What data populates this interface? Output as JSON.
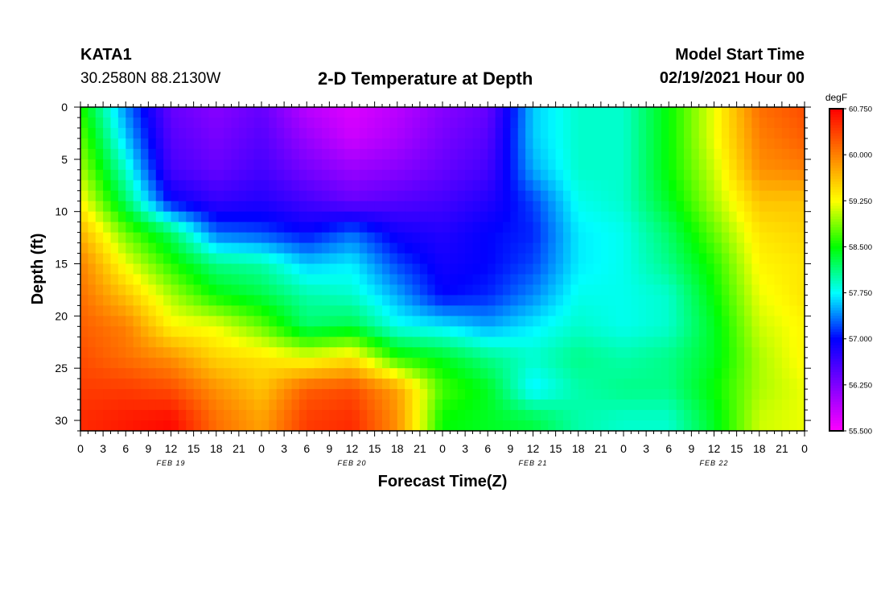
{
  "header": {
    "station_id": "KATA1",
    "station_coords": "30.2580N 88.2130W",
    "title": "2-D Temperature at Depth",
    "model_label": "Model Start Time",
    "model_time": "02/19/2021 Hour 00"
  },
  "chart_data": {
    "type": "heatmap",
    "title": "2-D Temperature at Depth",
    "xlabel": "Forecast Time(Z)",
    "ylabel": "Depth (ft)",
    "x_unit": "hours since model start",
    "xlim": [
      0,
      96
    ],
    "ylim": [
      0,
      31
    ],
    "y_inverted": true,
    "x_tick_labels": [
      "0",
      "3",
      "6",
      "9",
      "12",
      "15",
      "18",
      "21",
      "0",
      "3",
      "6",
      "9",
      "12",
      "15",
      "18",
      "21",
      "0",
      "3",
      "6",
      "9",
      "12",
      "15",
      "18",
      "21",
      "0",
      "3",
      "6",
      "9",
      "12",
      "15",
      "18",
      "21",
      "0"
    ],
    "date_labels": [
      "FEB 19",
      "FEB 20",
      "FEB 21",
      "FEB 22"
    ],
    "y_ticks": [
      0,
      5,
      10,
      15,
      20,
      25,
      30
    ],
    "colorbar": {
      "unit": "degF",
      "min": 55.5,
      "max": 60.75,
      "tick_values": [
        60.75,
        60.0,
        59.25,
        58.5,
        57.75,
        57.0,
        56.25,
        55.5
      ],
      "tick_labels": [
        "60.750",
        "60.000",
        "59.250",
        "58.500",
        "57.750",
        "57.000",
        "56.250",
        "55.500"
      ],
      "colors": [
        "#ff00ff",
        "#7f00ff",
        "#0000ff",
        "#00ffff",
        "#00ff00",
        "#ffff00",
        "#ff8000",
        "#ff0000"
      ]
    },
    "grid_x_hours": [
      0,
      6,
      12,
      18,
      24,
      30,
      36,
      42,
      48,
      54,
      60,
      66,
      72,
      78,
      84,
      90,
      96
    ],
    "grid_depths_ft": [
      0,
      3,
      6,
      9,
      12,
      15,
      18,
      21,
      24,
      27,
      30
    ],
    "values_degF": [
      [
        58.6,
        57.4,
        56.4,
        56.2,
        56.4,
        55.9,
        55.7,
        55.9,
        56.2,
        56.4,
        57.6,
        57.9,
        57.9,
        58.5,
        59.2,
        60.1,
        60.3
      ],
      [
        58.8,
        57.6,
        56.5,
        56.3,
        56.5,
        56.1,
        55.8,
        56.0,
        56.3,
        56.5,
        57.6,
        57.9,
        57.9,
        58.5,
        59.2,
        60.0,
        60.2
      ],
      [
        59.0,
        57.9,
        56.6,
        56.4,
        56.6,
        56.3,
        56.1,
        56.2,
        56.4,
        56.6,
        57.5,
        57.9,
        57.9,
        58.5,
        59.1,
        59.9,
        60.0
      ],
      [
        59.3,
        58.2,
        57.0,
        56.7,
        56.8,
        56.6,
        56.4,
        56.5,
        56.6,
        56.8,
        57.2,
        57.8,
        57.9,
        58.4,
        59.0,
        59.6,
        59.6
      ],
      [
        59.7,
        58.8,
        58.2,
        57.3,
        57.2,
        57.0,
        57.3,
        56.9,
        56.8,
        57.0,
        57.1,
        57.7,
        57.8,
        58.2,
        58.8,
        59.4,
        59.5
      ],
      [
        60.0,
        59.2,
        58.6,
        58.1,
        58.0,
        57.6,
        57.7,
        57.2,
        56.9,
        57.0,
        57.2,
        57.7,
        57.8,
        58.1,
        58.6,
        59.3,
        59.4
      ],
      [
        60.1,
        59.6,
        59.0,
        58.5,
        58.3,
        58.0,
        57.9,
        57.5,
        57.0,
        57.1,
        57.4,
        57.8,
        57.8,
        57.9,
        58.5,
        59.2,
        59.4
      ],
      [
        60.2,
        60.0,
        59.3,
        59.2,
        58.8,
        58.2,
        58.3,
        57.8,
        57.7,
        57.5,
        57.7,
        57.9,
        57.8,
        57.9,
        58.4,
        59.1,
        59.3
      ],
      [
        60.3,
        60.1,
        59.9,
        59.5,
        59.4,
        59.2,
        59.4,
        58.6,
        58.4,
        58.1,
        57.9,
        58.1,
        58.0,
        58.1,
        58.4,
        59.0,
        59.3
      ],
      [
        60.4,
        60.4,
        60.3,
        59.9,
        59.6,
        60.2,
        60.3,
        59.8,
        58.7,
        58.4,
        57.7,
        58.0,
        58.1,
        58.1,
        58.5,
        59.0,
        59.2
      ],
      [
        60.5,
        60.6,
        60.7,
        60.1,
        59.8,
        60.4,
        60.5,
        59.9,
        58.5,
        58.4,
        58.3,
        58.0,
        57.9,
        57.9,
        58.4,
        59.1,
        59.2
      ]
    ]
  }
}
